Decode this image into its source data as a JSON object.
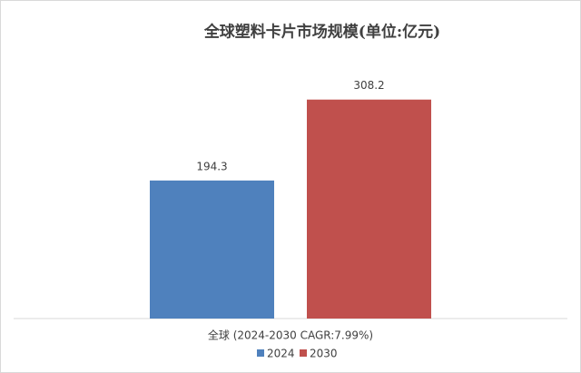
{
  "chart_data": {
    "type": "bar",
    "title": "全球塑料卡片市场规模(单位:亿元)",
    "categories": [
      "全球 (2024-2030 CAGR:7.99%)"
    ],
    "series": [
      {
        "name": "2024",
        "color": "#4f81bd",
        "values": [
          194.3
        ]
      },
      {
        "name": "2030",
        "color": "#c0504d",
        "values": [
          308.2
        ]
      }
    ],
    "ylim": [
      0,
      350
    ],
    "legend": "bottom"
  }
}
